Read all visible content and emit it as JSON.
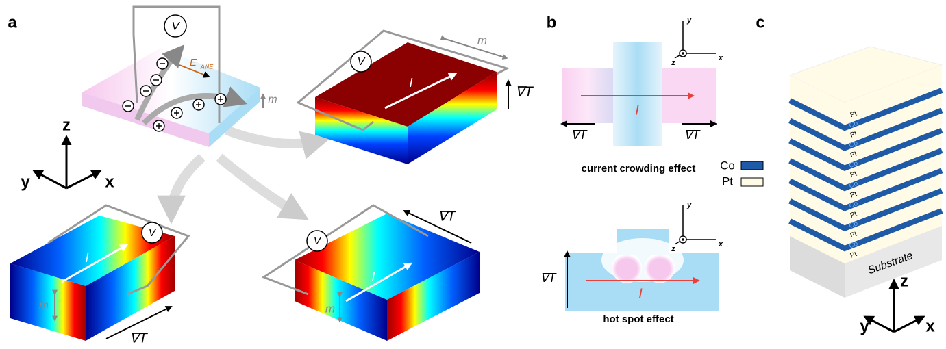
{
  "panel_a": {
    "label": "a",
    "center": {
      "voltmeter": "V",
      "field": "E",
      "field_sub": "ANE",
      "magnetization": "m"
    },
    "axes": {
      "z": "z",
      "y": "y",
      "x": "x"
    },
    "sample_top": {
      "voltmeter": "V",
      "current": "I",
      "magnetization": "m",
      "gradient": "∇T"
    },
    "sample_left": {
      "voltmeter": "V",
      "current": "I",
      "magnetization": "m",
      "gradient": "∇T"
    },
    "sample_right": {
      "voltmeter": "V",
      "current": "I",
      "magnetization": "m",
      "gradient": "∇T"
    }
  },
  "panel_b": {
    "label": "b",
    "top": {
      "axes": {
        "y": "y",
        "x": "x",
        "z": "z"
      },
      "current": "I",
      "gradient_left": "∇T",
      "gradient_right": "∇T",
      "caption": "current crowding effect"
    },
    "bottom": {
      "axes": {
        "y": "y",
        "x": "x",
        "z": "z"
      },
      "gradient": "∇T",
      "current": "I",
      "caption": "hot spot effect"
    }
  },
  "panel_c": {
    "label": "c",
    "legend": [
      "Co",
      "Pt"
    ],
    "layers": [
      "Pt",
      "Co",
      "Pt",
      "Co",
      "Pt",
      "Co",
      "Pt",
      "Co",
      "Pt",
      "Co",
      "Pt",
      "Co",
      "Pt",
      "Co",
      "Pt"
    ],
    "substrate": "Substrate",
    "axes": {
      "z": "z",
      "y": "y",
      "x": "x"
    }
  }
}
